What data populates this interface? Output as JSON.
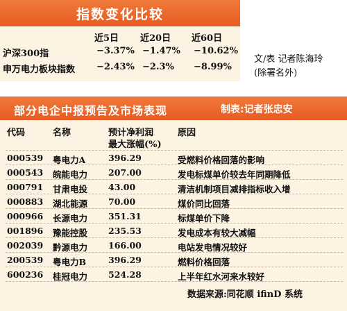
{
  "index_panel": {
    "title": "指数变化比较",
    "columns": [
      "近5日",
      "近20日",
      "近60日"
    ],
    "rows": [
      {
        "name": "沪深300指",
        "values": [
          "−3.37%",
          "−1.47%",
          "−10.62%"
        ]
      },
      {
        "name": "申万电力板块指数",
        "values": [
          "−2.43%",
          "−2.3%",
          "−8.99%"
        ]
      }
    ],
    "author_line1": "文/表  记者陈海玲",
    "author_line2": "(除署名外)"
  },
  "table_panel": {
    "title": "部分电企中报预告及市场表现",
    "credit": "制表:记者张忠安",
    "headers": {
      "code": "代码",
      "name": "名称",
      "profit_line1": "预计净利润",
      "profit_line2": "最大涨幅(%)",
      "reason": "原因"
    },
    "rows": [
      {
        "code": "000539",
        "name": "粤电力A",
        "value": "396.29",
        "reason": "受燃料价格回落的影响"
      },
      {
        "code": "000543",
        "name": "皖能电力",
        "value": "207.00",
        "reason": "发电标煤单价较去年同期降低"
      },
      {
        "code": "000791",
        "name": "甘肃电投",
        "value": "43.00",
        "reason": "清洁机制项目减排指标收入增"
      },
      {
        "code": "000883",
        "name": "湖北能源",
        "value": "70.00",
        "reason": "煤价同比回落"
      },
      {
        "code": "000966",
        "name": "长源电力",
        "value": "351.31",
        "reason": "标煤单价下降"
      },
      {
        "code": "001896",
        "name": "豫能控股",
        "value": "235.53",
        "reason": "发电成本有较大减幅"
      },
      {
        "code": "002039",
        "name": "黔源电力",
        "value": "166.00",
        "reason": "电站发电情况较好"
      },
      {
        "code": "200539",
        "name": "粤电力B",
        "value": "396.29",
        "reason": "燃料价格回落"
      },
      {
        "code": "600236",
        "name": "桂冠电力",
        "value": "524.28",
        "reason": "上半年红水河来水较好"
      }
    ],
    "footer": "数据来源:同花顺 ifinD 系统"
  }
}
